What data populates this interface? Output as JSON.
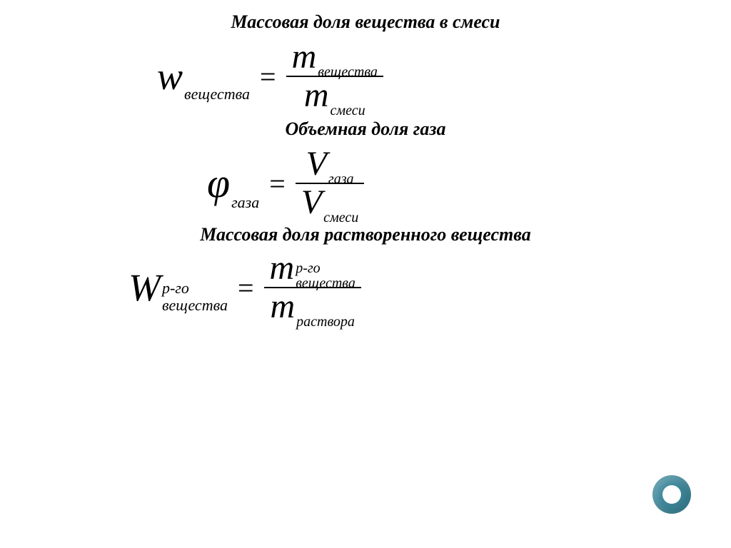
{
  "colors": {
    "text": "#000000",
    "background": "#ffffff",
    "frac_bar": "#000000",
    "accent_ring": "#3b8699",
    "accent_inner": "#ffffff"
  },
  "section1": {
    "heading": "Массовая доля вещества в смеси",
    "lhs": {
      "symbol": "w",
      "subscript": "вещества"
    },
    "numerator": {
      "symbol": "m",
      "subscript": "вещества"
    },
    "denominator": {
      "symbol": "m",
      "subscript": "смеси"
    }
  },
  "section2": {
    "heading": "Объемная доля газа",
    "lhs": {
      "symbol": "φ",
      "subscript": "газа"
    },
    "numerator": {
      "symbol": "V",
      "subscript": "газа"
    },
    "denominator": {
      "symbol": "V",
      "subscript": "смеси"
    }
  },
  "section3": {
    "heading": "Массовая доля растворенного вещества",
    "lhs": {
      "symbol": "W",
      "sub_line1": "р-го",
      "sub_line2": "вещества"
    },
    "numerator": {
      "symbol": "m",
      "sub_line1": "р-го",
      "sub_line2": "вещества"
    },
    "denominator": {
      "symbol": "m",
      "subscript": "раствора"
    }
  },
  "eq": "="
}
